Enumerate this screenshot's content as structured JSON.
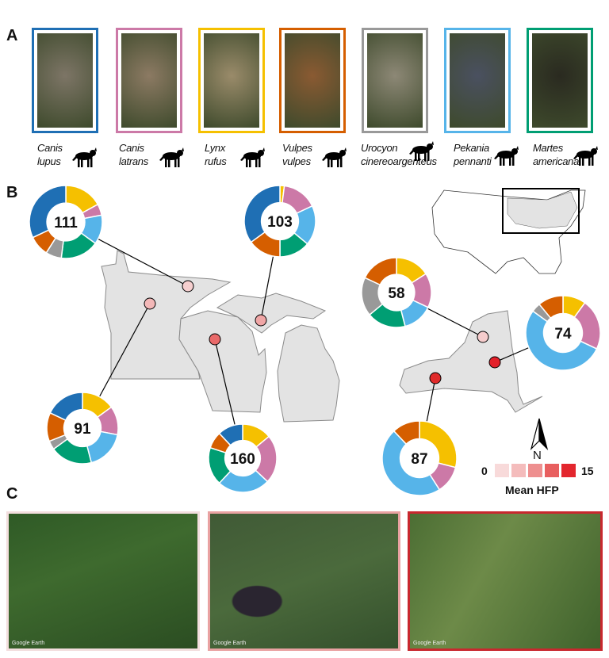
{
  "panels": {
    "a": "A",
    "b": "B",
    "c": "C"
  },
  "species": [
    {
      "name_line1": "Canis",
      "name_line2": "lupus",
      "color": "#1f6fb4",
      "icon": "wolf-silhouette-icon"
    },
    {
      "name_line1": "Canis",
      "name_line2": "latrans",
      "color": "#cc79a7",
      "icon": "coyote-silhouette-icon"
    },
    {
      "name_line1": "Lynx",
      "name_line2": "rufus",
      "color": "#f5c000",
      "icon": "bobcat-silhouette-icon"
    },
    {
      "name_line1": "Vulpes",
      "name_line2": "vulpes",
      "color": "#d55e00",
      "icon": "red-fox-silhouette-icon"
    },
    {
      "name_line1": "Urocyon",
      "name_line2": "cinereoargenteus",
      "color": "#999999",
      "icon": "gray-fox-silhouette-icon"
    },
    {
      "name_line1": "Pekania",
      "name_line2": "pennanti",
      "color": "#56b4e9",
      "icon": "fisher-silhouette-icon"
    },
    {
      "name_line1": "Martes",
      "name_line2": "americana",
      "color": "#009e73",
      "icon": "marten-silhouette-icon"
    }
  ],
  "donut_order": [
    "Lynx rufus",
    "Canis latrans",
    "Pekania pennanti",
    "Martes americana",
    "Urocyon cinereoargenteus",
    "Vulpes vulpes",
    "Canis lupus"
  ],
  "donut_colors": [
    "#f5c000",
    "#cc79a7",
    "#56b4e9",
    "#009e73",
    "#999999",
    "#d55e00",
    "#1f6fb4"
  ],
  "sites": [
    {
      "total": "111",
      "proportions": [
        0.17,
        0.05,
        0.13,
        0.17,
        0.07,
        0.09,
        0.32
      ],
      "hfp_color": "#f6cfcf"
    },
    {
      "total": "103",
      "proportions": [
        0.02,
        0.16,
        0.18,
        0.14,
        0.0,
        0.15,
        0.35
      ],
      "hfp_color": "#f0a6a6"
    },
    {
      "total": "91",
      "proportions": [
        0.15,
        0.13,
        0.18,
        0.19,
        0.04,
        0.13,
        0.18
      ],
      "hfp_color": "#f3b8b8"
    },
    {
      "total": "160",
      "proportions": [
        0.14,
        0.23,
        0.25,
        0.18,
        0.0,
        0.08,
        0.12
      ],
      "hfp_color": "#e96a6a"
    },
    {
      "total": "58",
      "proportions": [
        0.16,
        0.16,
        0.14,
        0.18,
        0.18,
        0.18,
        0.0
      ],
      "hfp_color": "#f5cccc"
    },
    {
      "total": "74",
      "proportions": [
        0.1,
        0.22,
        0.53,
        0.0,
        0.04,
        0.11,
        0.0
      ],
      "hfp_color": "#e3202a"
    },
    {
      "total": "87",
      "proportions": [
        0.29,
        0.12,
        0.47,
        0.0,
        0.0,
        0.12,
        0.0
      ],
      "hfp_color": "#e02a2a"
    }
  ],
  "north_label": "N",
  "legend": {
    "min": "0",
    "max": "15",
    "title": "Mean HFP",
    "colors": [
      "#f8dada",
      "#f4bcbc",
      "#ee8f8f",
      "#e85f5f",
      "#e3262e"
    ]
  },
  "satellite": [
    {
      "credit": "Google Earth",
      "border": "#f3dede"
    },
    {
      "credit": "Google Earth",
      "border": "#e9a2a2"
    },
    {
      "credit": "Google Earth",
      "border": "#c8282e"
    }
  ]
}
